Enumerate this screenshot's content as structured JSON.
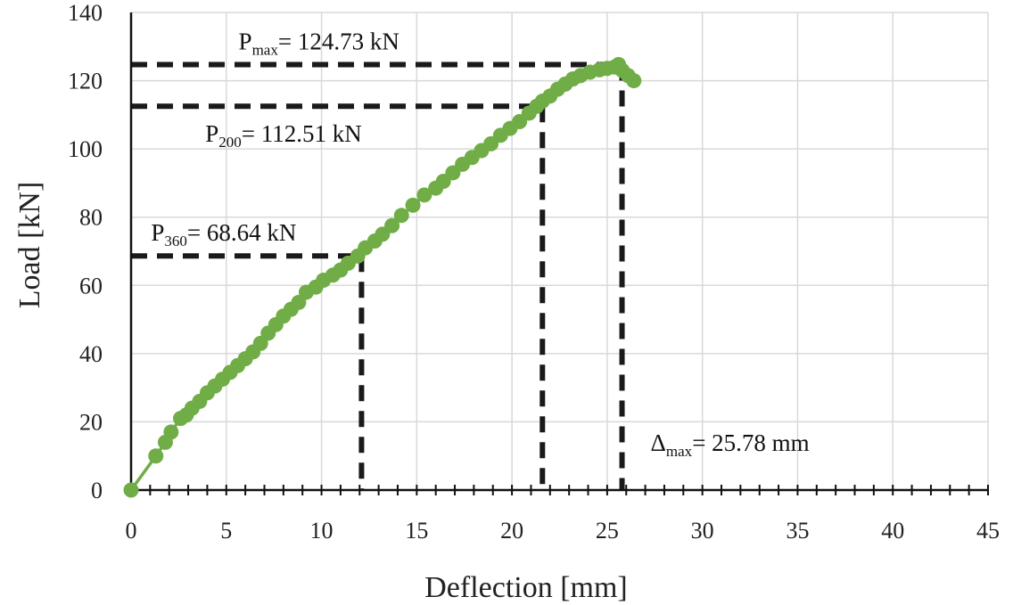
{
  "chart_data": {
    "type": "scatter",
    "xlabel": "Deflection [mm]",
    "ylabel": "Load [kN]",
    "xlim": [
      0,
      45
    ],
    "ylim": [
      0,
      140
    ],
    "xticks": [
      "0",
      "5",
      "10",
      "15",
      "20",
      "25",
      "30",
      "35",
      "40",
      "45"
    ],
    "yticks": [
      "0",
      "20",
      "40",
      "60",
      "80",
      "100",
      "120",
      "140"
    ],
    "grid": true,
    "series": [
      {
        "color": "#70ad47",
        "x": [
          0,
          1.3,
          1.8,
          2.1,
          2.6,
          2.9,
          3.2,
          3.6,
          4.0,
          4.4,
          4.8,
          5.2,
          5.6,
          6.0,
          6.4,
          6.8,
          7.2,
          7.6,
          8.0,
          8.4,
          8.8,
          9.2,
          9.7,
          10.1,
          10.6,
          11.0,
          11.4,
          11.9,
          12.3,
          12.8,
          13.2,
          13.7,
          14.2,
          14.8,
          15.4,
          16.0,
          16.4,
          16.9,
          17.4,
          17.9,
          18.4,
          18.9,
          19.4,
          19.9,
          20.4,
          20.9,
          21.3,
          21.6,
          22.0,
          22.4,
          22.8,
          23.2,
          23.6,
          24.1,
          24.6,
          25.0,
          25.4,
          25.6,
          25.8,
          26.1,
          26.4
        ],
        "y": [
          0,
          10,
          14,
          17,
          21,
          22,
          24,
          26,
          28.5,
          30.5,
          32.5,
          34.5,
          36.5,
          38.5,
          40.5,
          43,
          46,
          48.5,
          51,
          53,
          55,
          58,
          59.5,
          61.5,
          63,
          64.5,
          66.5,
          68.6,
          71,
          73,
          75,
          77.5,
          80.5,
          83.5,
          86.5,
          88.5,
          90.5,
          93,
          95.5,
          97.5,
          99.5,
          101.5,
          104,
          106,
          108,
          110.5,
          112.51,
          114,
          115.5,
          117.5,
          119,
          120.5,
          121.5,
          122.5,
          123.2,
          123.6,
          124.0,
          124.73,
          123.0,
          121.5,
          120.0
        ]
      }
    ],
    "annotations": [
      {
        "base": "P",
        "sub": "max",
        "rest": "= 124.73 kN",
        "x": 25.78,
        "y": 124.73
      },
      {
        "base": "P",
        "sub": "200",
        "rest": "= 112.51 kN",
        "x": 21.6,
        "y": 112.51
      },
      {
        "base": "P",
        "sub": "360",
        "rest": "= 68.64 kN",
        "x": 12.1,
        "y": 68.64
      },
      {
        "base": "Δ",
        "sub": "max",
        "rest": "= 25.78 mm",
        "x": 25.78,
        "y": 0
      }
    ]
  }
}
